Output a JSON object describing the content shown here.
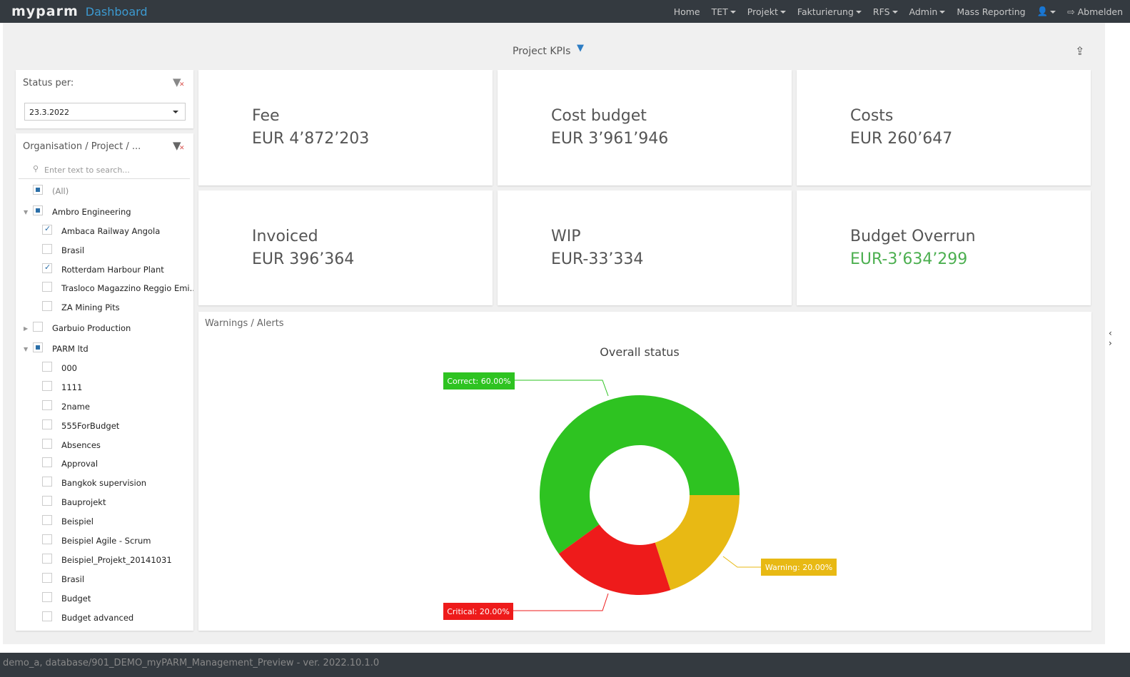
{
  "nav": {
    "logo": "myparm",
    "title": "Dashboard",
    "items": [
      {
        "label": "Home",
        "dropdown": false
      },
      {
        "label": "TET",
        "dropdown": true
      },
      {
        "label": "Projekt",
        "dropdown": true
      },
      {
        "label": "Fakturierung",
        "dropdown": true
      },
      {
        "label": "RFS",
        "dropdown": true
      },
      {
        "label": "Admin",
        "dropdown": true
      },
      {
        "label": "Mass Reporting",
        "dropdown": false
      }
    ],
    "logout": "Abmelden"
  },
  "header": {
    "title": "Project KPIs"
  },
  "status": {
    "label": "Status per:",
    "date": "23.3.2022"
  },
  "org": {
    "label": "Organisation / Project / ...",
    "search_placeholder": "Enter text to search...",
    "tree": [
      {
        "label": "(All)",
        "level": 0,
        "state": "partial",
        "toggle": ""
      },
      {
        "label": "Ambro Engineering",
        "level": 0,
        "state": "partial",
        "toggle": "open"
      },
      {
        "label": "Ambaca Railway Angola",
        "level": 1,
        "state": "checked"
      },
      {
        "label": "Brasil",
        "level": 1,
        "state": "none"
      },
      {
        "label": "Rotterdam Harbour Plant",
        "level": 1,
        "state": "checked"
      },
      {
        "label": "Trasloco Magazzino Reggio Emi...",
        "level": 1,
        "state": "none"
      },
      {
        "label": "ZA Mining Pits",
        "level": 1,
        "state": "none"
      },
      {
        "label": "Garbuio Production",
        "level": 0,
        "state": "none",
        "toggle": "closed"
      },
      {
        "label": "PARM ltd",
        "level": 0,
        "state": "partial",
        "toggle": "open"
      },
      {
        "label": "000",
        "level": 1,
        "state": "none"
      },
      {
        "label": "1111",
        "level": 1,
        "state": "none"
      },
      {
        "label": "2name",
        "level": 1,
        "state": "none"
      },
      {
        "label": "555ForBudget",
        "level": 1,
        "state": "none"
      },
      {
        "label": "Absences",
        "level": 1,
        "state": "none"
      },
      {
        "label": "Approval",
        "level": 1,
        "state": "none"
      },
      {
        "label": "Bangkok supervision",
        "level": 1,
        "state": "none"
      },
      {
        "label": "Bauprojekt",
        "level": 1,
        "state": "none"
      },
      {
        "label": "Beispiel",
        "level": 1,
        "state": "none"
      },
      {
        "label": "Beispiel Agile - Scrum",
        "level": 1,
        "state": "none"
      },
      {
        "label": "Beispiel_Projekt_20141031",
        "level": 1,
        "state": "none"
      },
      {
        "label": "Brasil",
        "level": 1,
        "state": "none"
      },
      {
        "label": "Budget",
        "level": 1,
        "state": "none"
      },
      {
        "label": "Budget advanced",
        "level": 1,
        "state": "none"
      }
    ]
  },
  "kpis": [
    {
      "title": "Fee",
      "value": "EUR 4’872’203",
      "color": "#555555"
    },
    {
      "title": "Cost budget",
      "value": "EUR 3’961’946",
      "color": "#555555"
    },
    {
      "title": "Costs",
      "value": "EUR 260’647",
      "color": "#555555"
    },
    {
      "title": "Invoiced",
      "value": "EUR 396’364",
      "color": "#555555"
    },
    {
      "title": "WIP",
      "value": "EUR-33’334",
      "color": "#555555"
    },
    {
      "title": "Budget Overrun",
      "value": "EUR-3’634’299",
      "color": "#4caf50"
    }
  ],
  "alerts": {
    "label": "Warnings / Alerts"
  },
  "chart_data": {
    "type": "pie",
    "subtype": "donut",
    "title": "Overall status",
    "slices": [
      {
        "name": "Warning",
        "value": 20,
        "label": "Warning: 20.00%",
        "color": "#e8b914"
      },
      {
        "name": "Critical",
        "value": 20,
        "label": "Critical: 20.00%",
        "color": "#ee1b1b"
      },
      {
        "name": "Correct",
        "value": 60,
        "label": "Correct: 60.00%",
        "color": "#2ec321"
      }
    ]
  },
  "footer": {
    "text": "demo_a, database/901_DEMO_myPARM_Management_Preview - ver. 2022.10.1.0"
  }
}
